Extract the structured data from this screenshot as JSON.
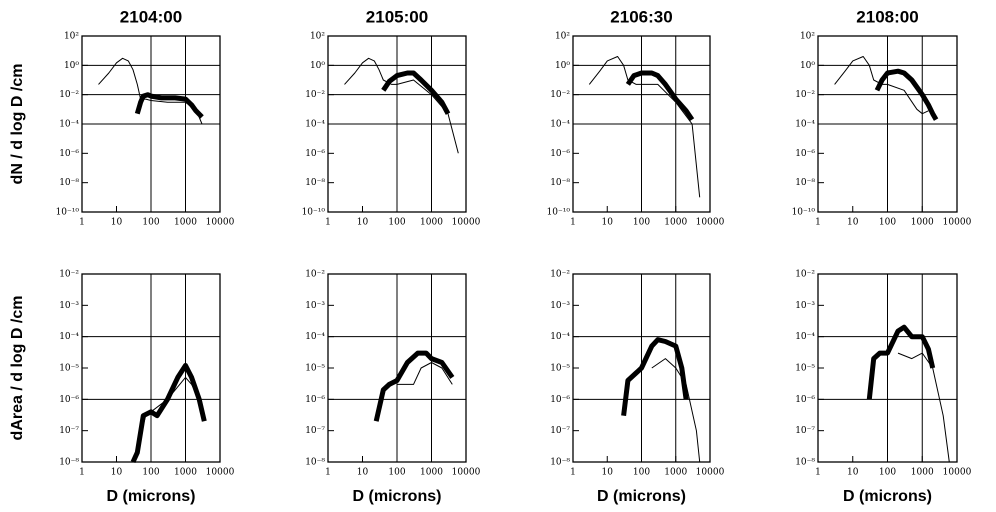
{
  "chart_data": [
    {
      "type": "line",
      "title": "2104:00",
      "ylabel": "dN / d log D /cm",
      "xscale": "log",
      "yscale": "log",
      "xlim": [
        1,
        10000
      ],
      "xticks": [
        1,
        10,
        100,
        1000,
        10000
      ],
      "ylim": [
        1e-10,
        100
      ],
      "yticks": [
        {
          "value": 100,
          "label": "10²"
        },
        {
          "value": 1,
          "label": "10⁰"
        },
        {
          "value": 0.01,
          "label": "10⁻²"
        },
        {
          "value": 0.0001,
          "label": "10⁻⁴"
        },
        {
          "value": 1e-06,
          "label": "10⁻⁶"
        },
        {
          "value": 1e-08,
          "label": "10⁻⁸"
        },
        {
          "value": 1e-10,
          "label": "10⁻¹⁰"
        }
      ],
      "vlines": [
        100,
        1000
      ],
      "hlines": [
        1,
        0.01,
        0.0001
      ],
      "series": [
        {
          "color": "#000000",
          "line_width": 1,
          "x": [
            3,
            6,
            10,
            15,
            22,
            30,
            40,
            50,
            70,
            100,
            300,
            1000,
            2000,
            3000
          ],
          "values": [
            0.05,
            0.3,
            1.5,
            3,
            2,
            0.5,
            0.05,
            0.005,
            0.005,
            0.004,
            0.003,
            0.003,
            0.001,
            0.0001
          ]
        },
        {
          "color": "#000000",
          "line_width": 5,
          "x": [
            40,
            50,
            60,
            80,
            100,
            200,
            500,
            1000,
            1500,
            2000,
            3000
          ],
          "values": [
            0.0005,
            0.003,
            0.008,
            0.01,
            0.008,
            0.006,
            0.006,
            0.005,
            0.002,
            0.0008,
            0.0003
          ]
        }
      ]
    },
    {
      "type": "line",
      "title": "2105:00",
      "xscale": "log",
      "yscale": "log",
      "xlim": [
        1,
        10000
      ],
      "xticks": [
        1,
        10,
        100,
        1000,
        10000
      ],
      "ylim": [
        1e-10,
        100
      ],
      "yticks": [
        {
          "value": 100,
          "label": "10²"
        },
        {
          "value": 1,
          "label": "10⁰"
        },
        {
          "value": 0.01,
          "label": "10⁻²"
        },
        {
          "value": 0.0001,
          "label": "10⁻⁴"
        },
        {
          "value": 1e-06,
          "label": "10⁻⁶"
        },
        {
          "value": 1e-08,
          "label": "10⁻⁸"
        },
        {
          "value": 1e-10,
          "label": "10⁻¹⁰"
        }
      ],
      "vlines": [
        100,
        1000
      ],
      "hlines": [
        1,
        0.01,
        0.0001
      ],
      "series": [
        {
          "color": "#000000",
          "line_width": 1,
          "x": [
            3,
            6,
            10,
            15,
            22,
            30,
            40,
            70,
            100,
            300,
            1000,
            3000,
            6000
          ],
          "values": [
            0.05,
            0.3,
            1.5,
            3,
            2,
            0.5,
            0.1,
            0.05,
            0.05,
            0.1,
            0.01,
            0.0005,
            1e-06
          ]
        },
        {
          "color": "#000000",
          "line_width": 5,
          "x": [
            40,
            60,
            100,
            200,
            300,
            500,
            1000,
            2000,
            3000
          ],
          "values": [
            0.02,
            0.08,
            0.2,
            0.3,
            0.3,
            0.1,
            0.02,
            0.003,
            0.0005
          ]
        }
      ]
    },
    {
      "type": "line",
      "title": "2106:30",
      "xscale": "log",
      "yscale": "log",
      "xlim": [
        1,
        10000
      ],
      "xticks": [
        1,
        10,
        100,
        1000,
        10000
      ],
      "ylim": [
        1e-10,
        100
      ],
      "yticks": [
        {
          "value": 100,
          "label": "10²"
        },
        {
          "value": 1,
          "label": "10⁰"
        },
        {
          "value": 0.01,
          "label": "10⁻²"
        },
        {
          "value": 0.0001,
          "label": "10⁻⁴"
        },
        {
          "value": 1e-06,
          "label": "10⁻⁶"
        },
        {
          "value": 1e-08,
          "label": "10⁻⁸"
        },
        {
          "value": 1e-10,
          "label": "10⁻¹⁰"
        }
      ],
      "vlines": [
        100,
        1000
      ],
      "hlines": [
        1,
        0.01,
        0.0001
      ],
      "series": [
        {
          "color": "#000000",
          "line_width": 1,
          "x": [
            3,
            6,
            10,
            20,
            30,
            40,
            70,
            100,
            300,
            1000,
            3000,
            5000
          ],
          "values": [
            0.05,
            0.4,
            2,
            4,
            1,
            0.1,
            0.05,
            0.05,
            0.05,
            0.003,
            0.0001,
            1e-09
          ]
        },
        {
          "color": "#000000",
          "line_width": 5,
          "x": [
            40,
            60,
            100,
            200,
            300,
            500,
            1000,
            2000,
            3000
          ],
          "values": [
            0.05,
            0.2,
            0.3,
            0.3,
            0.2,
            0.05,
            0.005,
            0.0008,
            0.0002
          ]
        }
      ]
    },
    {
      "type": "line",
      "title": "2108:00",
      "xscale": "log",
      "yscale": "log",
      "xlim": [
        1,
        10000
      ],
      "xticks": [
        1,
        10,
        100,
        1000,
        10000
      ],
      "ylim": [
        1e-10,
        100
      ],
      "yticks": [
        {
          "value": 100,
          "label": "10²"
        },
        {
          "value": 1,
          "label": "10⁰"
        },
        {
          "value": 0.01,
          "label": "10⁻²"
        },
        {
          "value": 0.0001,
          "label": "10⁻⁴"
        },
        {
          "value": 1e-06,
          "label": "10⁻⁶"
        },
        {
          "value": 1e-08,
          "label": "10⁻⁸"
        },
        {
          "value": 1e-10,
          "label": "10⁻¹⁰"
        }
      ],
      "vlines": [
        100,
        1000
      ],
      "hlines": [
        1,
        0.01,
        0.0001
      ],
      "series": [
        {
          "color": "#000000",
          "line_width": 1,
          "x": [
            3,
            6,
            10,
            20,
            30,
            40,
            70,
            100,
            300,
            700,
            1000,
            1500
          ],
          "values": [
            0.05,
            0.4,
            2,
            4,
            1,
            0.1,
            0.05,
            0.05,
            0.02,
            0.001,
            0.0005,
            0.0008
          ]
        },
        {
          "color": "#000000",
          "line_width": 5,
          "x": [
            50,
            70,
            100,
            200,
            300,
            500,
            1000,
            1500,
            2000,
            2500
          ],
          "values": [
            0.02,
            0.1,
            0.3,
            0.4,
            0.3,
            0.1,
            0.01,
            0.002,
            0.0005,
            0.0002
          ]
        }
      ]
    },
    {
      "type": "line",
      "ylabel": "dArea / d log D /cm",
      "xlabel": "D (microns)",
      "xscale": "log",
      "yscale": "log",
      "xlim": [
        1,
        10000
      ],
      "xticks": [
        1,
        10,
        100,
        1000,
        10000
      ],
      "ylim": [
        1e-08,
        0.01
      ],
      "yticks": [
        {
          "value": 0.01,
          "label": "10⁻²"
        },
        {
          "value": 0.001,
          "label": "10⁻³"
        },
        {
          "value": 0.0001,
          "label": "10⁻⁴"
        },
        {
          "value": 1e-05,
          "label": "10⁻⁵"
        },
        {
          "value": 1e-06,
          "label": "10⁻⁶"
        },
        {
          "value": 1e-07,
          "label": "10⁻⁷"
        },
        {
          "value": 1e-08,
          "label": "10⁻⁸"
        }
      ],
      "vlines": [
        100,
        1000
      ],
      "hlines": [
        0.0001,
        1e-06
      ],
      "series": [
        {
          "color": "#000000",
          "line_width": 1,
          "x": [
            40,
            70,
            100,
            300,
            1000,
            1500,
            2500
          ],
          "values": [
            3e-08,
            3e-07,
            4e-07,
            1e-06,
            5e-06,
            3e-06,
            1e-06
          ]
        },
        {
          "color": "#000000",
          "line_width": 5,
          "x": [
            30,
            40,
            60,
            100,
            150,
            300,
            600,
            1000,
            1500,
            2500,
            3500
          ],
          "values": [
            1e-08,
            2e-08,
            3e-07,
            4e-07,
            3e-07,
            1e-06,
            5e-06,
            1.2e-05,
            5e-06,
            1e-06,
            2e-07
          ]
        }
      ]
    },
    {
      "type": "line",
      "xlabel": "D (microns)",
      "xscale": "log",
      "yscale": "log",
      "xlim": [
        1,
        10000
      ],
      "xticks": [
        1,
        10,
        100,
        1000,
        10000
      ],
      "ylim": [
        1e-08,
        0.01
      ],
      "yticks": [
        {
          "value": 0.01,
          "label": "10⁻²"
        },
        {
          "value": 0.001,
          "label": "10⁻³"
        },
        {
          "value": 0.0001,
          "label": "10⁻⁴"
        },
        {
          "value": 1e-05,
          "label": "10⁻⁵"
        },
        {
          "value": 1e-06,
          "label": "10⁻⁶"
        },
        {
          "value": 1e-07,
          "label": "10⁻⁷"
        },
        {
          "value": 1e-08,
          "label": "10⁻⁸"
        }
      ],
      "vlines": [
        100,
        1000
      ],
      "hlines": [
        0.0001,
        1e-06
      ],
      "series": [
        {
          "color": "#000000",
          "line_width": 1,
          "x": [
            100,
            300,
            500,
            1000,
            2000,
            4000
          ],
          "values": [
            3e-06,
            3e-06,
            1e-05,
            1.5e-05,
            1e-05,
            3e-06
          ]
        },
        {
          "color": "#000000",
          "line_width": 5,
          "x": [
            25,
            40,
            60,
            100,
            200,
            400,
            700,
            1000,
            2000,
            4000
          ],
          "values": [
            2e-07,
            2e-06,
            3e-06,
            4e-06,
            1.5e-05,
            3e-05,
            3e-05,
            2e-05,
            1.5e-05,
            5e-06
          ]
        }
      ]
    },
    {
      "type": "line",
      "xlabel": "D (microns)",
      "xscale": "log",
      "yscale": "log",
      "xlim": [
        1,
        10000
      ],
      "xticks": [
        1,
        10,
        100,
        1000,
        10000
      ],
      "ylim": [
        1e-08,
        0.01
      ],
      "yticks": [
        {
          "value": 0.01,
          "label": "10⁻²"
        },
        {
          "value": 0.001,
          "label": "10⁻³"
        },
        {
          "value": 0.0001,
          "label": "10⁻⁴"
        },
        {
          "value": 1e-05,
          "label": "10⁻⁵"
        },
        {
          "value": 1e-06,
          "label": "10⁻⁶"
        },
        {
          "value": 1e-07,
          "label": "10⁻⁷"
        },
        {
          "value": 1e-08,
          "label": "10⁻⁸"
        }
      ],
      "vlines": [
        100,
        1000
      ],
      "hlines": [
        0.0001,
        1e-06
      ],
      "series": [
        {
          "color": "#000000",
          "line_width": 1,
          "x": [
            200,
            500,
            1000,
            2000,
            4000,
            5000
          ],
          "values": [
            1e-05,
            2e-05,
            1e-05,
            3e-06,
            1e-07,
            1e-08
          ]
        },
        {
          "color": "#000000",
          "line_width": 5,
          "x": [
            30,
            40,
            60,
            100,
            200,
            300,
            500,
            1000,
            1500,
            2000
          ],
          "values": [
            3e-07,
            4e-06,
            6e-06,
            1e-05,
            5e-05,
            8e-05,
            7e-05,
            5e-05,
            1e-05,
            1e-06
          ]
        }
      ]
    },
    {
      "type": "line",
      "xlabel": "D (microns)",
      "xscale": "log",
      "yscale": "log",
      "xlim": [
        1,
        10000
      ],
      "xticks": [
        1,
        10,
        100,
        1000,
        10000
      ],
      "ylim": [
        1e-08,
        0.01
      ],
      "yticks": [
        {
          "value": 0.01,
          "label": "10⁻²"
        },
        {
          "value": 0.001,
          "label": "10⁻³"
        },
        {
          "value": 0.0001,
          "label": "10⁻⁴"
        },
        {
          "value": 1e-05,
          "label": "10⁻⁵"
        },
        {
          "value": 1e-06,
          "label": "10⁻⁶"
        },
        {
          "value": 1e-07,
          "label": "10⁻⁷"
        },
        {
          "value": 1e-08,
          "label": "10⁻⁸"
        }
      ],
      "vlines": [
        100,
        1000
      ],
      "hlines": [
        0.0001,
        1e-06
      ],
      "series": [
        {
          "color": "#000000",
          "line_width": 1,
          "x": [
            200,
            500,
            1000,
            2000,
            4000,
            6000
          ],
          "values": [
            3e-05,
            2e-05,
            3e-05,
            1e-05,
            3e-07,
            1e-08
          ]
        },
        {
          "color": "#000000",
          "line_width": 5,
          "x": [
            30,
            40,
            60,
            100,
            200,
            300,
            500,
            1000,
            1500,
            2000
          ],
          "values": [
            1e-06,
            2e-05,
            3e-05,
            3e-05,
            0.00015,
            0.0002,
            0.0001,
            0.0001,
            4e-05,
            1e-05
          ]
        }
      ]
    }
  ]
}
